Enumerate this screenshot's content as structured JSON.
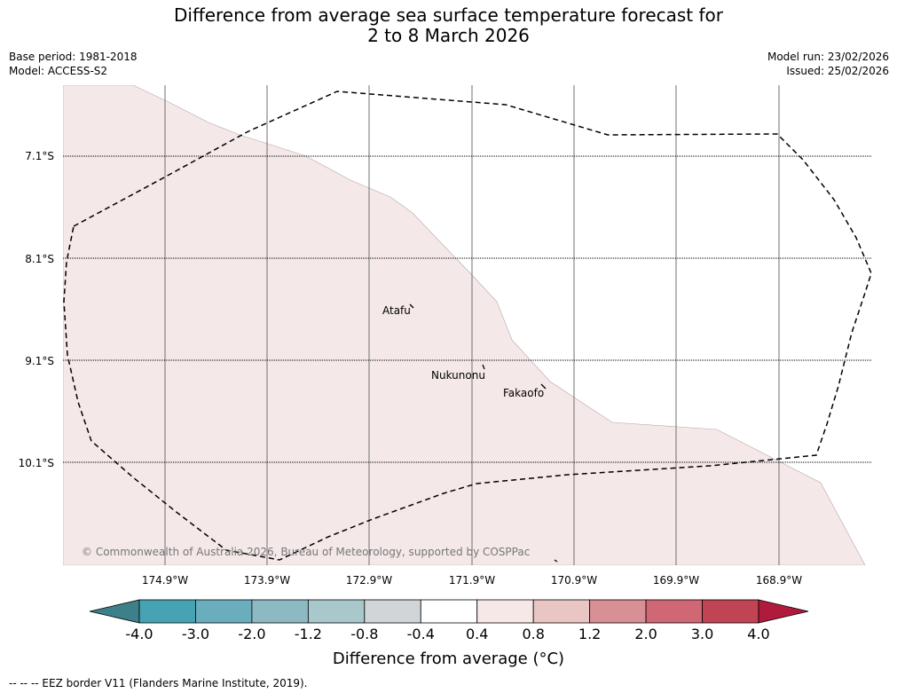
{
  "title": {
    "line1": "Difference from average sea surface temperature forecast for",
    "line2": "2 to 8 March 2026"
  },
  "meta_left": {
    "base_period": "Base period: 1981-2018",
    "model": "Model: ACCESS-S2"
  },
  "meta_right": {
    "model_run": "Model run: 23/02/2026",
    "issued": "Issued: 25/02/2026"
  },
  "map": {
    "lon_labels": [
      "174.9°W",
      "173.9°W",
      "172.9°W",
      "171.9°W",
      "170.9°W",
      "169.9°W",
      "168.9°W"
    ],
    "lat_labels": [
      "7.1°S",
      "8.1°S",
      "9.1°S",
      "10.1°S"
    ],
    "places": [
      {
        "name": "Atafu"
      },
      {
        "name": "Nukunonu"
      },
      {
        "name": "Fakaofo"
      }
    ],
    "copyright": "© Commonwealth of Australia 2026, Bureau of Meteorology, supported by COSPPac",
    "anomaly_fill_color": "#f4e8e8",
    "anomaly_category": "0.4 to 0.8"
  },
  "colorbar": {
    "ticks": [
      "-4.0",
      "-3.0",
      "-2.0",
      "-1.2",
      "-0.8",
      "-0.4",
      "0.4",
      "0.8",
      "1.2",
      "2.0",
      "3.0",
      "4.0"
    ],
    "colors": [
      "#3e808a",
      "#46a3b3",
      "#6aaebd",
      "#8db9c3",
      "#a9c8cc",
      "#d0d6d8",
      "#ffffff",
      "#f6e8e7",
      "#e9c6c3",
      "#d88f96",
      "#cf6774",
      "#c04454",
      "#b01a3c"
    ],
    "label": "Difference from average (°C)"
  },
  "footnote": "--  --  -- EEZ border V11 (Flanders Marine Institute, 2019)."
}
